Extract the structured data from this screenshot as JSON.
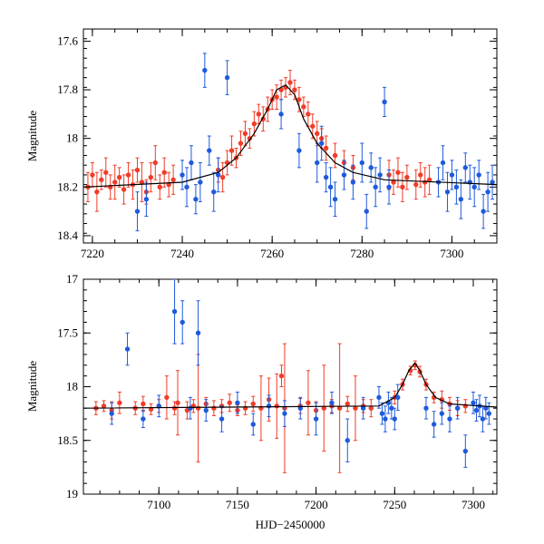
{
  "colors": {
    "red": "#f03c28",
    "blue": "#1e5adc",
    "model": "#000000"
  },
  "chart_data": [
    {
      "type": "scatter",
      "title": "",
      "xlabel": "",
      "ylabel": "Magnitude",
      "xlim": [
        7218,
        7310
      ],
      "ylim": [
        18.43,
        17.55
      ],
      "y_inverted": true,
      "xticks": [
        7220,
        7240,
        7260,
        7280,
        7300
      ],
      "xtick_labels": [
        "7220",
        "7240",
        "7260",
        "7280",
        "7300"
      ],
      "yticks": [
        17.6,
        17.8,
        18,
        18.2,
        18.4
      ],
      "ytick_labels": [
        "17.6",
        "17.8",
        "18",
        "18.2",
        "18.4"
      ],
      "model_curve": {
        "name": "model",
        "x": [
          7218,
          7240,
          7248,
          7252,
          7256,
          7259,
          7261,
          7263,
          7265,
          7267,
          7270,
          7274,
          7278,
          7285,
          7310
        ],
        "y": [
          18.2,
          18.18,
          18.14,
          18.08,
          17.98,
          17.88,
          17.8,
          17.78,
          17.82,
          17.92,
          18.02,
          18.1,
          18.14,
          18.17,
          18.19
        ]
      },
      "series": [
        {
          "name": "red",
          "x": [
            7219,
            7220,
            7221,
            7222,
            7223,
            7224,
            7225,
            7226,
            7227,
            7228,
            7229,
            7230,
            7231,
            7232,
            7233,
            7234,
            7235,
            7236,
            7237,
            7238,
            7248,
            7249,
            7250,
            7251,
            7252,
            7253,
            7254,
            7255,
            7256,
            7257,
            7258,
            7259,
            7260,
            7261,
            7262,
            7263,
            7264,
            7265,
            7266,
            7267,
            7268,
            7269,
            7270,
            7271,
            7272,
            7274,
            7276,
            7278,
            7286,
            7287,
            7288,
            7289,
            7290,
            7292,
            7293,
            7294,
            7295
          ],
          "y": [
            18.2,
            18.15,
            18.22,
            18.17,
            18.14,
            18.2,
            18.18,
            18.16,
            18.21,
            18.15,
            18.19,
            18.13,
            18.18,
            18.22,
            18.16,
            18.1,
            18.2,
            18.14,
            18.19,
            18.17,
            18.13,
            18.16,
            18.1,
            18.05,
            18.08,
            18.02,
            17.98,
            18.0,
            17.94,
            17.9,
            17.92,
            17.88,
            17.84,
            17.83,
            17.8,
            17.79,
            17.77,
            17.8,
            17.84,
            17.87,
            17.9,
            17.95,
            17.98,
            18.0,
            18.04,
            18.07,
            18.1,
            18.12,
            18.15,
            18.18,
            18.14,
            18.2,
            18.16,
            18.19,
            18.15,
            18.18,
            18.17
          ],
          "err": [
            0.06,
            0.05,
            0.08,
            0.04,
            0.06,
            0.05,
            0.07,
            0.04,
            0.06,
            0.05,
            0.06,
            0.05,
            0.08,
            0.05,
            0.06,
            0.07,
            0.05,
            0.06,
            0.05,
            0.06,
            0.05,
            0.06,
            0.05,
            0.06,
            0.04,
            0.05,
            0.05,
            0.04,
            0.05,
            0.04,
            0.05,
            0.05,
            0.04,
            0.05,
            0.04,
            0.04,
            0.05,
            0.04,
            0.05,
            0.04,
            0.05,
            0.05,
            0.05,
            0.04,
            0.05,
            0.05,
            0.05,
            0.05,
            0.06,
            0.05,
            0.06,
            0.06,
            0.05,
            0.06,
            0.05,
            0.06,
            0.06
          ]
        },
        {
          "name": "blue",
          "x": [
            7230,
            7232,
            7240,
            7241,
            7242,
            7243,
            7244,
            7245,
            7246,
            7247,
            7248,
            7250,
            7262,
            7266,
            7270,
            7271,
            7272,
            7273,
            7274,
            7276,
            7278,
            7280,
            7281,
            7282,
            7283,
            7284,
            7285,
            7286,
            7297,
            7298,
            7299,
            7300,
            7301,
            7302,
            7303,
            7304,
            7305,
            7306,
            7307,
            7308,
            7309
          ],
          "y": [
            18.3,
            18.25,
            18.15,
            18.2,
            18.1,
            18.25,
            18.18,
            17.72,
            18.05,
            18.22,
            18.15,
            17.75,
            17.9,
            18.05,
            18.1,
            18.02,
            18.16,
            18.2,
            18.25,
            18.15,
            18.18,
            18.1,
            18.3,
            18.12,
            18.2,
            18.15,
            17.85,
            18.2,
            18.18,
            18.1,
            18.22,
            18.15,
            18.2,
            18.25,
            18.12,
            18.18,
            18.2,
            18.15,
            18.3,
            18.22,
            18.18
          ],
          "err": [
            0.08,
            0.07,
            0.06,
            0.08,
            0.07,
            0.06,
            0.08,
            0.07,
            0.06,
            0.08,
            0.07,
            0.07,
            0.06,
            0.07,
            0.08,
            0.07,
            0.06,
            0.08,
            0.07,
            0.06,
            0.07,
            0.08,
            0.07,
            0.06,
            0.08,
            0.07,
            0.06,
            0.07,
            0.06,
            0.07,
            0.08,
            0.06,
            0.07,
            0.08,
            0.06,
            0.07,
            0.08,
            0.06,
            0.07,
            0.08,
            0.07
          ]
        }
      ]
    },
    {
      "type": "scatter",
      "title": "",
      "xlabel": "HJD−2450000",
      "ylabel": "Magnitude",
      "xlim": [
        7052,
        7315
      ],
      "ylim": [
        19,
        17
      ],
      "y_inverted": true,
      "xticks": [
        7100,
        7150,
        7200,
        7250,
        7300
      ],
      "xtick_labels": [
        "7100",
        "7150",
        "7200",
        "7250",
        "7300"
      ],
      "yticks": [
        17,
        17.5,
        18,
        18.5,
        19
      ],
      "ytick_labels": [
        "17",
        "17.5",
        "18",
        "18.5",
        "19"
      ],
      "model_curve": {
        "name": "model",
        "x": [
          7052,
          7240,
          7250,
          7255,
          7259,
          7263,
          7266,
          7270,
          7276,
          7285,
          7315
        ],
        "y": [
          18.2,
          18.18,
          18.1,
          17.98,
          17.85,
          17.78,
          17.85,
          17.98,
          18.1,
          18.16,
          18.19
        ]
      },
      "series": [
        {
          "name": "red",
          "x": [
            7060,
            7065,
            7070,
            7075,
            7085,
            7090,
            7095,
            7100,
            7105,
            7110,
            7112,
            7118,
            7122,
            7125,
            7130,
            7135,
            7140,
            7145,
            7150,
            7155,
            7160,
            7165,
            7170,
            7175,
            7178,
            7180,
            7190,
            7195,
            7200,
            7205,
            7210,
            7215,
            7220,
            7225,
            7230,
            7235,
            7250,
            7255,
            7260,
            7263,
            7266,
            7270,
            7275,
            7280,
            7285,
            7290,
            7295
          ],
          "y": [
            18.2,
            18.18,
            18.22,
            18.15,
            18.2,
            18.16,
            18.21,
            18.18,
            18.1,
            18.2,
            18.15,
            18.22,
            18.18,
            18.2,
            18.16,
            18.2,
            18.18,
            18.15,
            18.22,
            18.2,
            18.16,
            18.2,
            18.12,
            18.18,
            17.9,
            18.2,
            18.18,
            18.15,
            18.22,
            18.2,
            18.18,
            18.2,
            18.16,
            18.2,
            18.18,
            18.2,
            18.1,
            17.98,
            17.85,
            17.8,
            17.86,
            17.98,
            18.1,
            18.12,
            18.16,
            18.2,
            18.18
          ],
          "err": [
            0.06,
            0.05,
            0.08,
            0.1,
            0.06,
            0.07,
            0.05,
            0.06,
            0.2,
            0.06,
            0.3,
            0.08,
            0.06,
            0.5,
            0.06,
            0.07,
            0.06,
            0.08,
            0.05,
            0.06,
            0.07,
            0.3,
            0.2,
            0.3,
            0.1,
            0.6,
            0.07,
            0.3,
            0.08,
            0.4,
            0.06,
            0.6,
            0.07,
            0.3,
            0.06,
            0.08,
            0.06,
            0.05,
            0.04,
            0.04,
            0.05,
            0.05,
            0.05,
            0.08,
            0.06,
            0.07,
            0.06
          ]
        },
        {
          "name": "blue",
          "x": [
            7070,
            7080,
            7090,
            7100,
            7110,
            7115,
            7120,
            7125,
            7130,
            7140,
            7150,
            7160,
            7170,
            7180,
            7190,
            7200,
            7210,
            7220,
            7230,
            7240,
            7242,
            7244,
            7246,
            7248,
            7250,
            7252,
            7270,
            7275,
            7280,
            7285,
            7290,
            7295,
            7300,
            7302,
            7304,
            7306,
            7308,
            7310
          ],
          "y": [
            18.25,
            17.65,
            18.3,
            18.18,
            17.3,
            17.4,
            18.2,
            17.5,
            18.22,
            18.3,
            18.15,
            18.35,
            18.18,
            18.25,
            18.2,
            18.3,
            18.15,
            18.5,
            18.2,
            18.1,
            18.25,
            18.3,
            18.15,
            18.2,
            18.3,
            18.1,
            18.2,
            18.35,
            18.25,
            18.3,
            18.2,
            18.6,
            18.15,
            18.22,
            18.18,
            18.3,
            18.2,
            18.25
          ],
          "err": [
            0.1,
            0.15,
            0.08,
            0.1,
            0.3,
            0.2,
            0.1,
            0.3,
            0.1,
            0.12,
            0.1,
            0.1,
            0.1,
            0.12,
            0.1,
            0.15,
            0.1,
            0.2,
            0.1,
            0.1,
            0.1,
            0.12,
            0.1,
            0.1,
            0.1,
            0.12,
            0.1,
            0.12,
            0.1,
            0.12,
            0.1,
            0.15,
            0.1,
            0.1,
            0.1,
            0.12,
            0.1,
            0.1
          ]
        }
      ]
    }
  ]
}
